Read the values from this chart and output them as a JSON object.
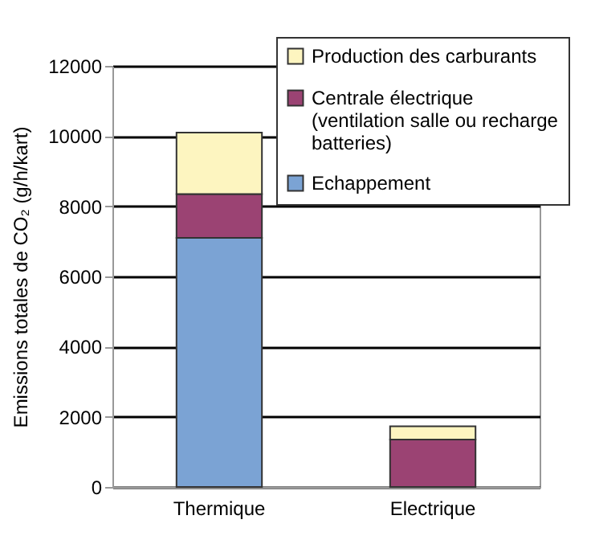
{
  "chart_data": {
    "type": "bar",
    "stacked": true,
    "ylabel": "Emissions totales de CO₂ (g/h/kart)",
    "categories": [
      "Thermique",
      "Electrique"
    ],
    "series": [
      {
        "name": "Echappement",
        "color": "#7ba3d4",
        "values": [
          7100,
          0
        ]
      },
      {
        "name": "Centrale électrique (ventilation salle ou recharge batteries)",
        "color": "#9b4373",
        "values": [
          1250,
          1350
        ]
      },
      {
        "name": "Production des carburants",
        "color": "#fdf5c0",
        "values": [
          1750,
          380
        ]
      }
    ],
    "ylim": [
      0,
      12000
    ],
    "yticks": [
      0,
      2000,
      4000,
      6000,
      8000,
      10000,
      12000
    ],
    "grid": "y",
    "legend": "top right"
  }
}
